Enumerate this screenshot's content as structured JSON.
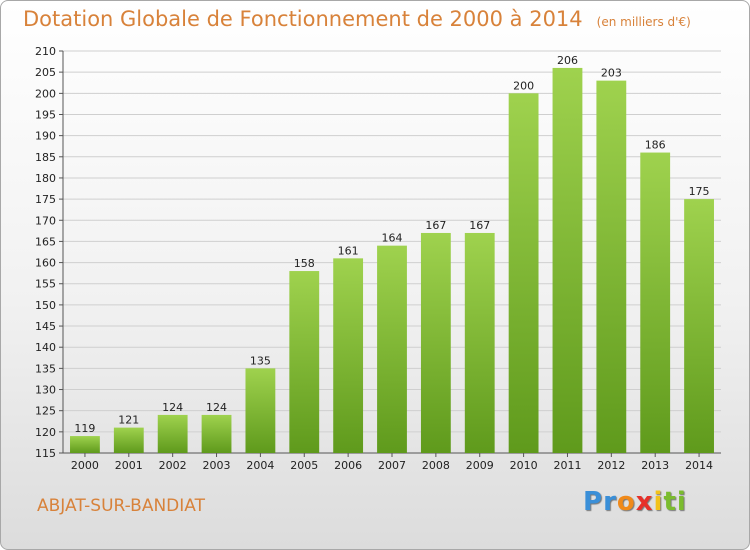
{
  "chart_data": {
    "type": "bar",
    "title": "Dotation Globale de Fonctionnement de 2000 à 2014",
    "subtitle": "(en milliers d'€)",
    "categories": [
      "2000",
      "2001",
      "2002",
      "2003",
      "2004",
      "2005",
      "2006",
      "2007",
      "2008",
      "2009",
      "2010",
      "2011",
      "2012",
      "2013",
      "2014"
    ],
    "values": [
      119,
      121,
      124,
      124,
      135,
      158,
      161,
      164,
      167,
      167,
      200,
      206,
      203,
      186,
      175
    ],
    "ylim": [
      115,
      210
    ],
    "yticks": [
      115,
      120,
      125,
      130,
      135,
      140,
      145,
      150,
      155,
      160,
      165,
      170,
      175,
      180,
      185,
      190,
      195,
      200,
      205,
      210
    ],
    "grid": true,
    "bar_color": "#7bbc2e"
  },
  "commune": "ABJAT-SUR-BANDIAT",
  "brand": {
    "letters": [
      "P",
      "r",
      "o",
      "x",
      "i",
      "t",
      "i"
    ],
    "colors": [
      "#3a8fd8",
      "#3a8fd8",
      "#f08a1a",
      "#e6302a",
      "#f2c21b",
      "#7bbc2e",
      "#7bbc2e"
    ]
  }
}
